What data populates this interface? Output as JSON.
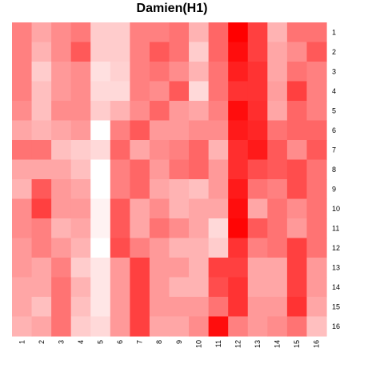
{
  "chart_data": {
    "type": "heatmap",
    "title": "Damien(H1)",
    "xlabel": "",
    "ylabel": "",
    "x_labels": [
      "1",
      "2",
      "3",
      "4",
      "5",
      "6",
      "7",
      "8",
      "9",
      "10",
      "11",
      "12",
      "13",
      "14",
      "15",
      "16"
    ],
    "y_labels": [
      "1",
      "2",
      "3",
      "4",
      "5",
      "6",
      "7",
      "8",
      "9",
      "10",
      "11",
      "12",
      "13",
      "14",
      "15",
      "16"
    ],
    "value_range": [
      0,
      1
    ],
    "color_low": "#ffffff",
    "color_high": "#ff0000",
    "values": [
      [
        0.5,
        0.35,
        0.45,
        0.52,
        0.2,
        0.2,
        0.5,
        0.5,
        0.55,
        0.3,
        0.6,
        1.0,
        0.75,
        0.3,
        0.55,
        0.55
      ],
      [
        0.5,
        0.3,
        0.45,
        0.65,
        0.2,
        0.2,
        0.5,
        0.65,
        0.55,
        0.2,
        0.6,
        0.95,
        0.75,
        0.35,
        0.45,
        0.65
      ],
      [
        0.5,
        0.2,
        0.4,
        0.45,
        0.12,
        0.18,
        0.5,
        0.55,
        0.45,
        0.3,
        0.55,
        0.88,
        0.8,
        0.35,
        0.55,
        0.5
      ],
      [
        0.5,
        0.25,
        0.4,
        0.45,
        0.15,
        0.15,
        0.5,
        0.45,
        0.65,
        0.15,
        0.55,
        0.8,
        0.8,
        0.38,
        0.75,
        0.5
      ],
      [
        0.45,
        0.25,
        0.45,
        0.45,
        0.2,
        0.3,
        0.45,
        0.6,
        0.4,
        0.35,
        0.5,
        0.95,
        0.82,
        0.35,
        0.6,
        0.5
      ],
      [
        0.35,
        0.3,
        0.35,
        0.4,
        0.0,
        0.5,
        0.65,
        0.4,
        0.4,
        0.45,
        0.45,
        0.9,
        0.85,
        0.55,
        0.6,
        0.6
      ],
      [
        0.55,
        0.55,
        0.25,
        0.2,
        0.15,
        0.6,
        0.35,
        0.45,
        0.5,
        0.6,
        0.3,
        0.82,
        0.9,
        0.65,
        0.45,
        0.65
      ],
      [
        0.35,
        0.35,
        0.35,
        0.25,
        0.0,
        0.5,
        0.6,
        0.4,
        0.55,
        0.6,
        0.4,
        0.82,
        0.7,
        0.65,
        0.7,
        0.55
      ],
      [
        0.3,
        0.65,
        0.4,
        0.35,
        0.0,
        0.5,
        0.6,
        0.35,
        0.3,
        0.25,
        0.4,
        0.9,
        0.55,
        0.5,
        0.7,
        0.55
      ],
      [
        0.45,
        0.75,
        0.4,
        0.4,
        0.05,
        0.65,
        0.35,
        0.45,
        0.3,
        0.35,
        0.35,
        0.95,
        0.35,
        0.55,
        0.45,
        0.55
      ],
      [
        0.45,
        0.5,
        0.3,
        0.35,
        0.05,
        0.65,
        0.35,
        0.55,
        0.45,
        0.35,
        0.15,
        0.98,
        0.65,
        0.55,
        0.4,
        0.55
      ],
      [
        0.4,
        0.5,
        0.4,
        0.3,
        0.0,
        0.7,
        0.5,
        0.4,
        0.3,
        0.3,
        0.2,
        0.8,
        0.5,
        0.55,
        0.75,
        0.55
      ],
      [
        0.4,
        0.35,
        0.5,
        0.2,
        0.1,
        0.4,
        0.75,
        0.4,
        0.4,
        0.3,
        0.75,
        0.75,
        0.35,
        0.35,
        0.75,
        0.4
      ],
      [
        0.35,
        0.35,
        0.55,
        0.3,
        0.1,
        0.4,
        0.75,
        0.4,
        0.3,
        0.3,
        0.7,
        0.8,
        0.35,
        0.35,
        0.75,
        0.4
      ],
      [
        0.35,
        0.25,
        0.55,
        0.25,
        0.1,
        0.4,
        0.75,
        0.4,
        0.4,
        0.4,
        0.55,
        0.8,
        0.4,
        0.4,
        0.8,
        0.35
      ],
      [
        0.3,
        0.35,
        0.55,
        0.2,
        0.15,
        0.4,
        0.75,
        0.35,
        0.35,
        0.45,
        0.95,
        0.5,
        0.4,
        0.45,
        0.55,
        0.25
      ]
    ],
    "legend": "none"
  }
}
